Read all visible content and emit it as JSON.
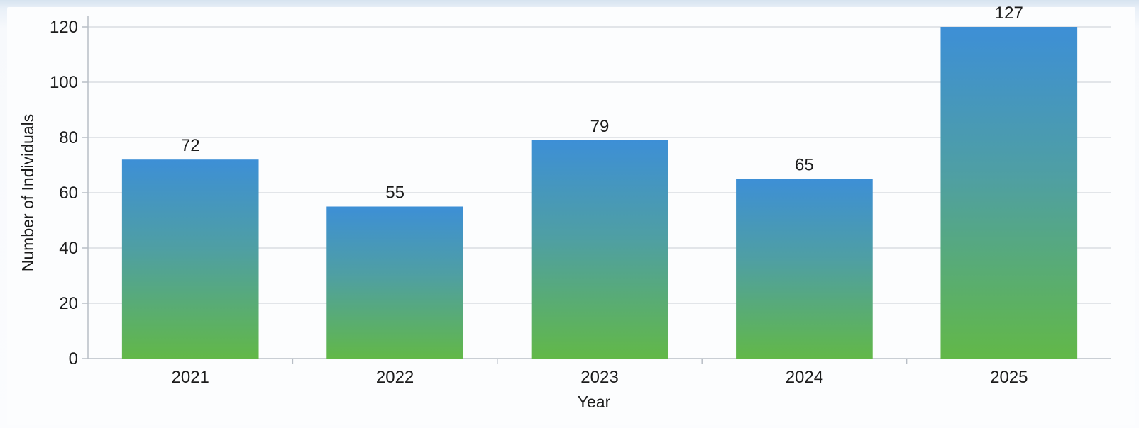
{
  "chart_data": {
    "type": "bar",
    "title": "",
    "xlabel": "Year",
    "ylabel": "Number of Individuals",
    "categories": [
      "2021",
      "2022",
      "2023",
      "2024",
      "2025"
    ],
    "values": [
      72,
      55,
      79,
      65,
      127
    ],
    "data_labels": [
      "72",
      "55",
      "79",
      "65",
      "127"
    ],
    "yticks": [
      0,
      20,
      40,
      60,
      80,
      100,
      120
    ],
    "ylim": [
      0,
      120
    ],
    "grid": true,
    "legend": "none",
    "colors": {
      "bar_top": "#3d8fd6",
      "bar_mid": "#4f9fa3",
      "bar_bottom": "#62b848",
      "grid": "#d9dde2",
      "axis": "#b8bec6"
    }
  }
}
